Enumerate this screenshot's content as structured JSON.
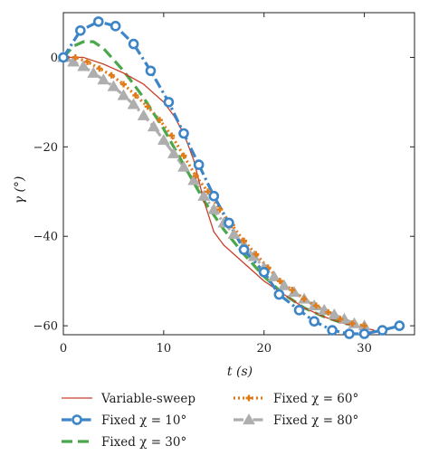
{
  "chart_data": {
    "type": "line",
    "title": "",
    "xlabel": "t (s)",
    "ylabel": "γ (°)",
    "xlim": [
      0,
      35
    ],
    "ylim": [
      -62,
      10
    ],
    "xticks": [
      0,
      10,
      20,
      30
    ],
    "yticks": [
      0,
      -20,
      -40,
      -60
    ],
    "xtick_labels": [
      "0",
      "10",
      "20",
      "30"
    ],
    "ytick_labels": [
      "0",
      "−20",
      "−40",
      "−60"
    ],
    "grid": false,
    "legend_position": "bottom",
    "series": [
      {
        "name": "Variable-sweep",
        "color": "#c8412a",
        "style": "solid",
        "marker": "none",
        "x": [
          0,
          2,
          4,
          6,
          8,
          10,
          11,
          12,
          13,
          14,
          15,
          16,
          18,
          20,
          22,
          24,
          26,
          28,
          30,
          31
        ],
        "y": [
          0,
          0,
          -1.5,
          -3.5,
          -6,
          -10,
          -13,
          -17,
          -23,
          -32,
          -39,
          -42,
          -46,
          -50,
          -53,
          -56,
          -58,
          -59.5,
          -60.5,
          -61
        ]
      },
      {
        "name": "Fixed χ = 10°",
        "color": "#3d85c6",
        "style": "dashdot",
        "marker": "circle",
        "x": [
          0,
          1.7,
          3.5,
          5.2,
          7,
          8.7,
          10.5,
          12,
          13.5,
          15,
          16.5,
          18,
          20,
          21.5,
          23.5,
          25,
          26.8,
          28.5,
          30,
          31.8,
          33.5
        ],
        "y": [
          0,
          6,
          8,
          7,
          3,
          -3,
          -10,
          -17,
          -24,
          -31,
          -37,
          -43,
          -48,
          -53,
          -56.5,
          -59,
          -61,
          -61.8,
          -61.8,
          -61,
          -60
        ]
      },
      {
        "name": "Fixed χ = 30°",
        "color": "#4aa84a",
        "style": "dashed",
        "marker": "none",
        "x": [
          0,
          1,
          2,
          3,
          4,
          6,
          8,
          10,
          12,
          14,
          16,
          18,
          20,
          22,
          24,
          26,
          28,
          30
        ],
        "y": [
          0,
          2.5,
          3.5,
          3.5,
          2,
          -3,
          -9,
          -16,
          -24,
          -32,
          -38.5,
          -44,
          -49,
          -53,
          -56,
          -58,
          -59.5,
          -60
        ]
      },
      {
        "name": "Fixed χ = 60°",
        "color": "#e07b1a",
        "style": "dotted",
        "marker": "plus",
        "x": [
          0,
          1.2,
          2.4,
          3.6,
          4.8,
          6,
          7.2,
          8.4,
          9.6,
          10.8,
          12,
          13.2,
          14.4,
          15.6,
          16.8,
          18,
          19.2,
          20.4,
          21.6,
          22.8,
          24,
          25.2,
          26.4,
          27.6,
          28.8,
          30
        ],
        "y": [
          0,
          0,
          -1,
          -2.5,
          -4,
          -6,
          -8.5,
          -11,
          -14,
          -17.5,
          -22,
          -26.5,
          -30,
          -34,
          -37.5,
          -41,
          -44,
          -47,
          -50,
          -52,
          -54,
          -55.5,
          -57,
          -58.5,
          -59.5,
          -60
        ]
      },
      {
        "name": "Fixed χ = 80°",
        "color": "#aeaeae",
        "style": "dashdot",
        "marker": "triangle",
        "x": [
          0,
          1,
          2,
          3,
          4,
          5,
          6,
          7,
          8,
          9,
          10,
          11,
          12,
          13,
          14,
          15,
          16,
          17,
          18,
          19,
          20,
          21,
          22,
          23,
          24,
          25,
          26,
          27,
          28,
          29,
          30
        ],
        "y": [
          0,
          -1,
          -2,
          -3.5,
          -5,
          -6.5,
          -8.5,
          -10.5,
          -13,
          -15.5,
          -18.5,
          -21.5,
          -24.5,
          -27.5,
          -31,
          -34,
          -37,
          -39.5,
          -42,
          -44.5,
          -47,
          -49,
          -51,
          -52.5,
          -54,
          -55.5,
          -56.5,
          -57.5,
          -58.5,
          -59.5,
          -60
        ]
      }
    ]
  }
}
